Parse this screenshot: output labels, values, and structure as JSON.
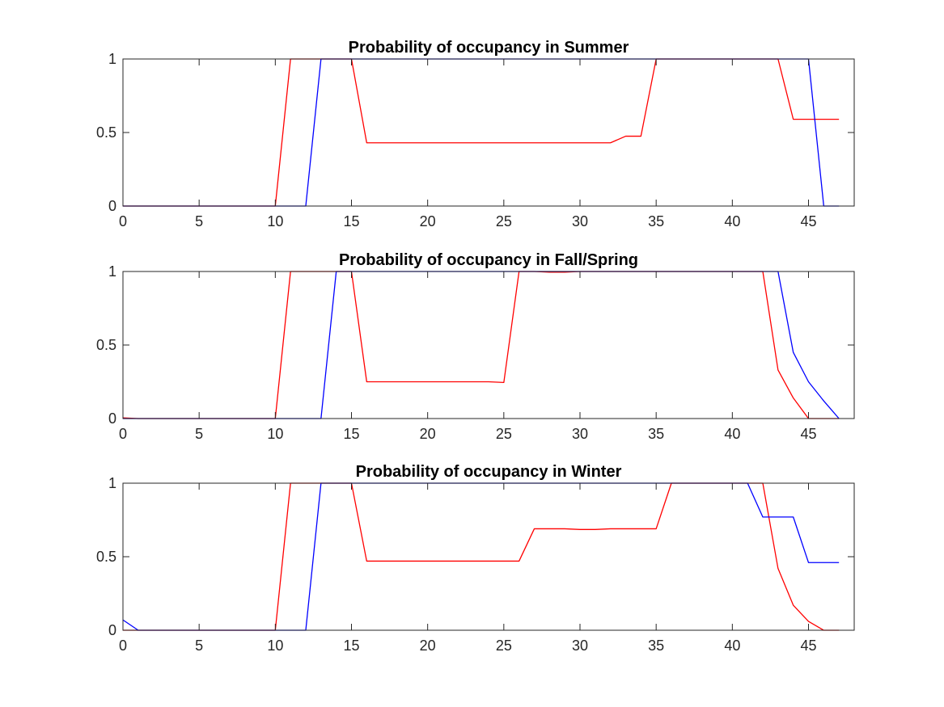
{
  "chart_data": [
    {
      "type": "line",
      "title": "Probability of occupancy in Summer",
      "xlim": [
        0,
        48
      ],
      "ylim": [
        0,
        1
      ],
      "xticks": [
        "0",
        "5",
        "10",
        "15",
        "20",
        "25",
        "30",
        "35",
        "40",
        "45"
      ],
      "yticks": [
        "0",
        "0.5",
        "1"
      ],
      "grid": false,
      "series": [
        {
          "color": "#ff0000",
          "x": [
            0,
            1,
            2,
            3,
            4,
            5,
            6,
            7,
            8,
            9,
            10,
            11,
            12,
            13,
            14,
            15,
            16,
            17,
            18,
            19,
            20,
            21,
            22,
            23,
            24,
            25,
            26,
            27,
            28,
            29,
            30,
            31,
            32,
            33,
            34,
            35,
            36,
            37,
            38,
            39,
            40,
            41,
            42,
            43,
            44,
            45,
            46,
            47
          ],
          "y": [
            0,
            0,
            0,
            0,
            0,
            0,
            0,
            0,
            0,
            0,
            0,
            1,
            1,
            1,
            1,
            1,
            0.43,
            0.43,
            0.43,
            0.43,
            0.43,
            0.43,
            0.43,
            0.43,
            0.43,
            0.43,
            0.43,
            0.43,
            0.43,
            0.43,
            0.43,
            0.43,
            0.43,
            0.475,
            0.475,
            1,
            1,
            1,
            1,
            1,
            1,
            1,
            1,
            1,
            0.59,
            0.59,
            0.59,
            0.59
          ]
        },
        {
          "color": "#0000ff",
          "x": [
            0,
            1,
            2,
            3,
            4,
            5,
            6,
            7,
            8,
            9,
            10,
            11,
            12,
            13,
            14,
            15,
            16,
            17,
            18,
            19,
            20,
            21,
            22,
            23,
            24,
            25,
            26,
            27,
            28,
            29,
            30,
            31,
            32,
            33,
            34,
            35,
            36,
            37,
            38,
            39,
            40,
            41,
            42,
            43,
            44,
            45,
            46,
            47
          ],
          "y": [
            0,
            0,
            0,
            0,
            0,
            0,
            0,
            0,
            0,
            0,
            0,
            0,
            0,
            1,
            1,
            1,
            1,
            1,
            1,
            1,
            1,
            1,
            1,
            1,
            1,
            1,
            1,
            1,
            1,
            1,
            1,
            1,
            1,
            1,
            1,
            1,
            1,
            1,
            1,
            1,
            1,
            1,
            1,
            1,
            1,
            1,
            0,
            0
          ]
        }
      ]
    },
    {
      "type": "line",
      "title": "Probability of occupancy in Fall/Spring",
      "xlim": [
        0,
        48
      ],
      "ylim": [
        0,
        1
      ],
      "xticks": [
        "0",
        "5",
        "10",
        "15",
        "20",
        "25",
        "30",
        "35",
        "40",
        "45"
      ],
      "yticks": [
        "0",
        "0.5",
        "1"
      ],
      "grid": false,
      "series": [
        {
          "color": "#ff0000",
          "x": [
            0,
            1,
            2,
            3,
            4,
            5,
            6,
            7,
            8,
            9,
            10,
            11,
            12,
            13,
            14,
            15,
            16,
            17,
            18,
            19,
            20,
            21,
            22,
            23,
            24,
            25,
            26,
            27,
            28,
            29,
            30,
            31,
            32,
            33,
            34,
            35,
            36,
            37,
            38,
            39,
            40,
            41,
            42,
            43,
            44,
            45,
            46,
            47
          ],
          "y": [
            0.005,
            0,
            0,
            0,
            0,
            0,
            0,
            0,
            0,
            0,
            0,
            1,
            1,
            1,
            1,
            1,
            0.25,
            0.25,
            0.25,
            0.25,
            0.25,
            0.25,
            0.25,
            0.25,
            0.25,
            0.245,
            1,
            1,
            0.995,
            0.995,
            1,
            1,
            1,
            1,
            1,
            1,
            1,
            1,
            1,
            1,
            1,
            1,
            1,
            0.33,
            0.14,
            0,
            0,
            0
          ]
        },
        {
          "color": "#0000ff",
          "x": [
            0,
            1,
            2,
            3,
            4,
            5,
            6,
            7,
            8,
            9,
            10,
            11,
            12,
            13,
            14,
            15,
            16,
            17,
            18,
            19,
            20,
            21,
            22,
            23,
            24,
            25,
            26,
            27,
            28,
            29,
            30,
            31,
            32,
            33,
            34,
            35,
            36,
            37,
            38,
            39,
            40,
            41,
            42,
            43,
            44,
            45,
            46,
            47
          ],
          "y": [
            0,
            0,
            0,
            0,
            0,
            0,
            0,
            0,
            0,
            0,
            0,
            0,
            0,
            0,
            1,
            1,
            1,
            1,
            1,
            1,
            1,
            1,
            1,
            1,
            1,
            1,
            1,
            1,
            1,
            1,
            1,
            1,
            1,
            1,
            1,
            1,
            1,
            1,
            1,
            1,
            1,
            1,
            1,
            1,
            0.45,
            0.25,
            0.12,
            0
          ]
        }
      ]
    },
    {
      "type": "line",
      "title": "Probability of occupancy in Winter",
      "xlim": [
        0,
        48
      ],
      "ylim": [
        0,
        1
      ],
      "xticks": [
        "0",
        "5",
        "10",
        "15",
        "20",
        "25",
        "30",
        "35",
        "40",
        "45"
      ],
      "yticks": [
        "0",
        "0.5",
        "1"
      ],
      "grid": false,
      "series": [
        {
          "color": "#ff0000",
          "x": [
            0,
            1,
            2,
            3,
            4,
            5,
            6,
            7,
            8,
            9,
            10,
            11,
            12,
            13,
            14,
            15,
            16,
            17,
            18,
            19,
            20,
            21,
            22,
            23,
            24,
            25,
            26,
            27,
            28,
            29,
            30,
            31,
            32,
            33,
            34,
            35,
            36,
            37,
            38,
            39,
            40,
            41,
            42,
            43,
            44,
            45,
            46,
            47
          ],
          "y": [
            0,
            0,
            0,
            0,
            0,
            0,
            0,
            0,
            0,
            0,
            0,
            1,
            1,
            1,
            1,
            1,
            0.47,
            0.47,
            0.47,
            0.47,
            0.47,
            0.47,
            0.47,
            0.47,
            0.47,
            0.47,
            0.47,
            0.69,
            0.69,
            0.69,
            0.685,
            0.685,
            0.69,
            0.69,
            0.69,
            0.69,
            1,
            1,
            1,
            1,
            1,
            1,
            1,
            0.42,
            0.17,
            0.06,
            0,
            0
          ]
        },
        {
          "color": "#0000ff",
          "x": [
            0,
            1,
            2,
            3,
            4,
            5,
            6,
            7,
            8,
            9,
            10,
            11,
            12,
            13,
            14,
            15,
            16,
            17,
            18,
            19,
            20,
            21,
            22,
            23,
            24,
            25,
            26,
            27,
            28,
            29,
            30,
            31,
            32,
            33,
            34,
            35,
            36,
            37,
            38,
            39,
            40,
            41,
            42,
            43,
            44,
            45,
            46,
            47
          ],
          "y": [
            0.07,
            0,
            0,
            0,
            0,
            0,
            0,
            0,
            0,
            0,
            0,
            0,
            0,
            1,
            1,
            1,
            1,
            1,
            1,
            1,
            1,
            1,
            1,
            1,
            1,
            1,
            1,
            1,
            1,
            1,
            1,
            1,
            1,
            1,
            1,
            1,
            1,
            1,
            1,
            1,
            1,
            1,
            0.77,
            0.77,
            0.77,
            0.46,
            0.46,
            0.46
          ]
        }
      ]
    }
  ]
}
